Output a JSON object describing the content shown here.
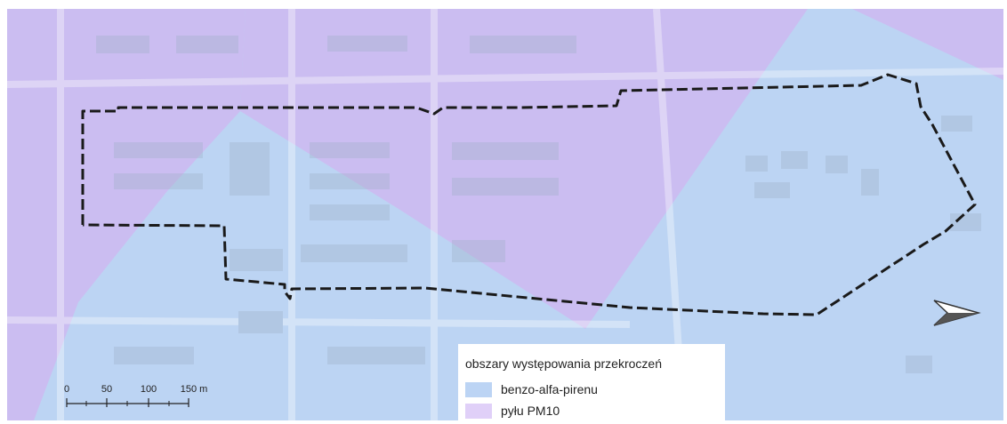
{
  "legend": {
    "title": "obszary występowania przekroczeń",
    "items": [
      {
        "label": "benzo-alfa-pirenu",
        "color": "#bcd4f4"
      },
      {
        "label": "pyłu PM10",
        "color": "#e0d0f8"
      }
    ]
  },
  "scale": {
    "ticks": [
      "0",
      "50",
      "100",
      "150 m"
    ]
  },
  "colors": {
    "bap_zone": "#b7cff2",
    "pm10_zone": "#cbbcf2",
    "boundary": "#1a1a1a"
  },
  "icons": {
    "north_arrow": "north-arrow-icon"
  }
}
